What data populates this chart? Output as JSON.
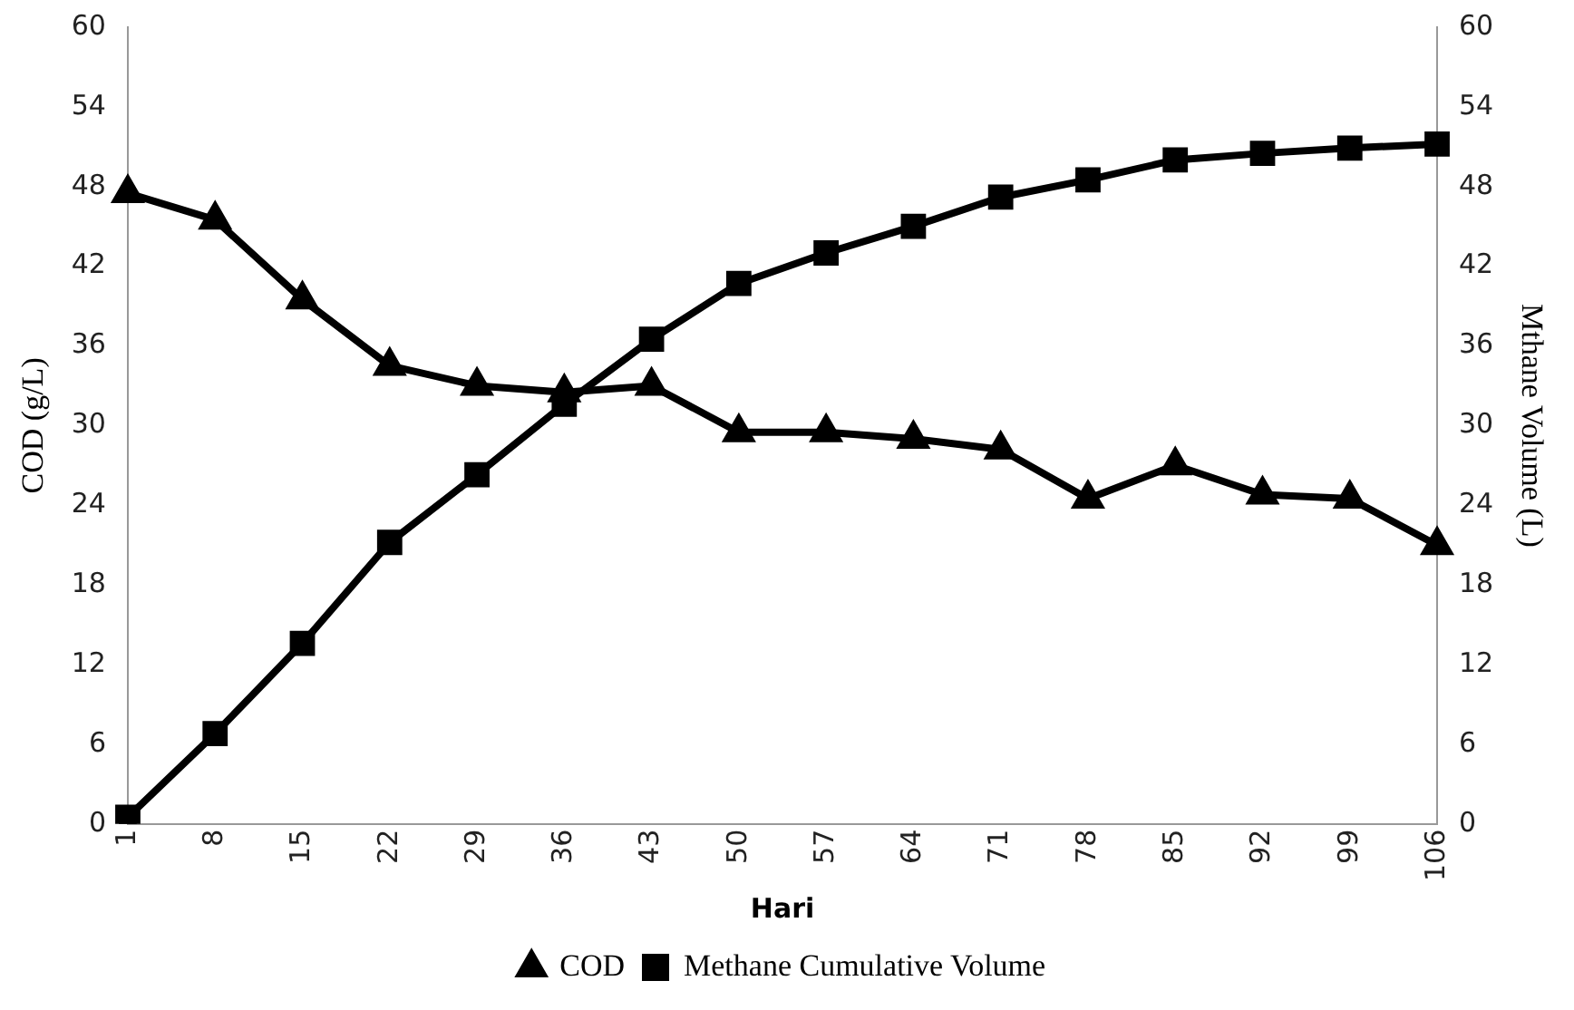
{
  "chart_data": {
    "type": "line",
    "categories": [
      "1",
      "8",
      "15",
      "22",
      "29",
      "36",
      "43",
      "50",
      "57",
      "64",
      "71",
      "78",
      "85",
      "92",
      "99",
      "106"
    ],
    "xlabel": "Hari",
    "ylabel": "COD (g/L)",
    "y2label": "Mthane Volume (L)",
    "series": [
      {
        "name": "COD",
        "color": "#000000",
        "marker": "triangle",
        "values": [
          47.5,
          45.5,
          39.5,
          34.5,
          33,
          32.5,
          33,
          29.5,
          29.5,
          29,
          28.2,
          24.5,
          27,
          24.8,
          24.5,
          21
        ]
      },
      {
        "name": "Methane Cumulative Volume",
        "color": "#000000",
        "marker": "square",
        "axis": "y2",
        "values": [
          0.5,
          6.8,
          13.6,
          21.2,
          26.3,
          31.6,
          36.5,
          40.7,
          43,
          45,
          47.2,
          48.5,
          50,
          50.5,
          50.9,
          51.2
        ]
      }
    ],
    "ylim": [
      0,
      60
    ],
    "yticks": [
      0,
      6,
      12,
      18,
      24,
      30,
      36,
      42,
      48,
      54,
      60
    ],
    "y2lim": [
      0,
      60
    ],
    "y2ticks": [
      0,
      6,
      12,
      18,
      24,
      30,
      36,
      42,
      48,
      54,
      60
    ],
    "grid": false,
    "legend": "bottom",
    "line_style": "solid"
  }
}
